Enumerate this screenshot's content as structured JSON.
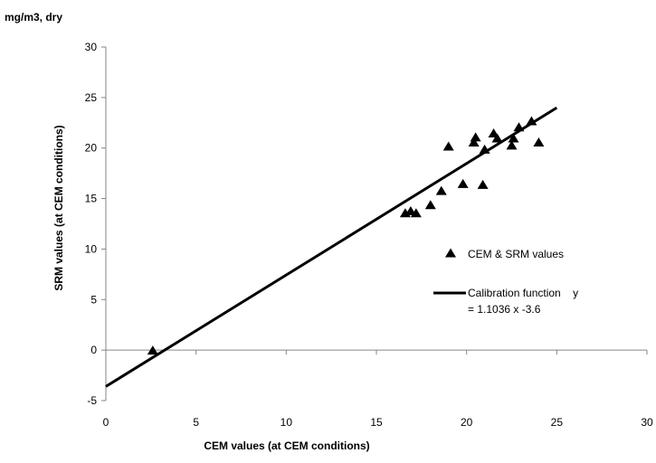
{
  "chart_data": {
    "type": "scatter",
    "unit_label": "mg/m3, dry",
    "title": "",
    "xlabel": "CEM values (at CEM conditions)",
    "ylabel": "SRM values (at CEM conditions)",
    "xlim": [
      0,
      30
    ],
    "ylim": [
      -5,
      30
    ],
    "x_ticks": [
      0,
      5,
      10,
      15,
      20,
      25,
      30
    ],
    "y_ticks": [
      -5,
      0,
      5,
      10,
      15,
      20,
      25,
      30
    ],
    "grid": false,
    "legend_position": "right",
    "series": [
      {
        "name": "CEM & SRM values",
        "kind": "scatter",
        "marker": "triangle",
        "color": "#000000",
        "points": [
          {
            "x": 2.6,
            "y": 0.0
          },
          {
            "x": 16.6,
            "y": 13.6
          },
          {
            "x": 16.9,
            "y": 13.8
          },
          {
            "x": 17.2,
            "y": 13.6
          },
          {
            "x": 18.0,
            "y": 14.4
          },
          {
            "x": 18.6,
            "y": 15.8
          },
          {
            "x": 19.0,
            "y": 20.2
          },
          {
            "x": 19.8,
            "y": 16.5
          },
          {
            "x": 20.4,
            "y": 20.6
          },
          {
            "x": 20.5,
            "y": 21.1
          },
          {
            "x": 20.9,
            "y": 16.4
          },
          {
            "x": 21.0,
            "y": 19.9
          },
          {
            "x": 21.5,
            "y": 21.5
          },
          {
            "x": 21.7,
            "y": 21.0
          },
          {
            "x": 22.5,
            "y": 20.3
          },
          {
            "x": 22.6,
            "y": 21.0
          },
          {
            "x": 22.9,
            "y": 22.1
          },
          {
            "x": 23.6,
            "y": 22.7
          },
          {
            "x": 24.0,
            "y": 20.6
          }
        ]
      },
      {
        "name": "Calibration function    y = 1.1036 x -3.6",
        "legend_line1": "Calibration function    y",
        "legend_line2": "= 1.1036 x -3.6",
        "kind": "line",
        "color": "#000000",
        "slope": 1.1036,
        "intercept": -3.6,
        "x_range": [
          0,
          25
        ]
      }
    ]
  }
}
